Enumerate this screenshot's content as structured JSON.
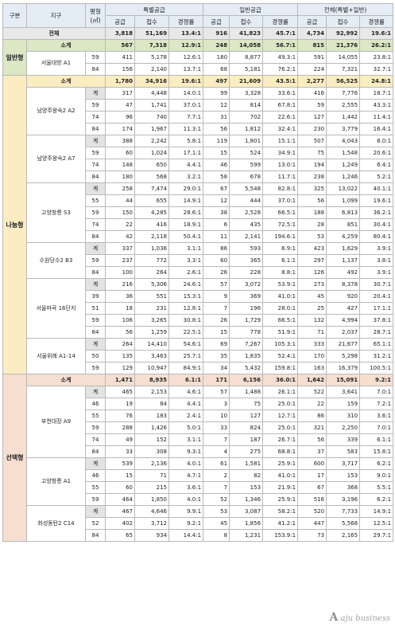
{
  "headers": {
    "gubun": "구분",
    "jigu": "지구",
    "pyeong": "평형",
    "unit": "(㎡)",
    "special": "특별공급",
    "general": "일반공급",
    "total": "전체(특별+일반)",
    "supply": "공급",
    "apply": "접수",
    "rate": "경쟁률"
  },
  "total_row": {
    "label": "전체",
    "v": [
      "3,818",
      "51,169",
      "13.4:1",
      "916",
      "41,823",
      "45.7:1",
      "4,734",
      "92,992",
      "19.6:1"
    ]
  },
  "subtotal_label": "소계",
  "sections": [
    {
      "key": "g",
      "category": "일반형",
      "subtotal": [
        "567",
        "7,318",
        "12.9:1",
        "248",
        "14,058",
        "56.7:1",
        "815",
        "21,376",
        "26.2:1"
      ],
      "districts": [
        {
          "name": "서울대방 A1",
          "rows": [
            {
              "size": "59",
              "v": [
                "411",
                "5,178",
                "12.6:1",
                "180",
                "8,877",
                "49.3:1",
                "591",
                "14,055",
                "23.8:1"
              ]
            },
            {
              "size": "84",
              "v": [
                "156",
                "2,140",
                "13.7:1",
                "68",
                "5,181",
                "76.2:1",
                "224",
                "7,321",
                "32.7:1"
              ]
            }
          ]
        }
      ]
    },
    {
      "key": "y",
      "category": "나눔형",
      "subtotal": [
        "1,780",
        "34,916",
        "19.6:1",
        "497",
        "21,609",
        "43.5:1",
        "2,277",
        "56,525",
        "24.8:1"
      ],
      "districts": [
        {
          "name": "남양주왕숙2 A2",
          "rows": [
            {
              "size": "계",
              "v": [
                "317",
                "4,448",
                "14.0:1",
                "99",
                "3,328",
                "33.6:1",
                "416",
                "7,776",
                "18.7:1"
              ]
            },
            {
              "size": "59",
              "v": [
                "47",
                "1,741",
                "37.0:1",
                "12",
                "814",
                "67.8:1",
                "59",
                "2,555",
                "43.3:1"
              ]
            },
            {
              "size": "74",
              "v": [
                "96",
                "740",
                "7.7:1",
                "31",
                "702",
                "22.6:1",
                "127",
                "1,442",
                "11.4:1"
              ]
            },
            {
              "size": "84",
              "v": [
                "174",
                "1,967",
                "11.3:1",
                "56",
                "1,812",
                "32.4:1",
                "230",
                "3,779",
                "16.4:1"
              ]
            }
          ]
        },
        {
          "name": "남양주왕숙2 A7",
          "rows": [
            {
              "size": "계",
              "v": [
                "388",
                "2,242",
                "5.8:1",
                "119",
                "1,801",
                "15.1:1",
                "507",
                "4,043",
                "8.0:1"
              ]
            },
            {
              "size": "59",
              "v": [
                "60",
                "1,024",
                "17.1:1",
                "15",
                "524",
                "34.9:1",
                "75",
                "1,548",
                "20.6:1"
              ]
            },
            {
              "size": "74",
              "v": [
                "148",
                "650",
                "4.4:1",
                "46",
                "599",
                "13.0:1",
                "194",
                "1,249",
                "6.4:1"
              ]
            },
            {
              "size": "84",
              "v": [
                "180",
                "568",
                "3.2:1",
                "58",
                "678",
                "11.7:1",
                "238",
                "1,246",
                "5.2:1"
              ]
            }
          ]
        },
        {
          "name": "고양창릉 S3",
          "rows": [
            {
              "size": "계",
              "v": [
                "258",
                "7,474",
                "29.0:1",
                "67",
                "5,548",
                "82.8:1",
                "325",
                "13,022",
                "40.1:1"
              ]
            },
            {
              "size": "55",
              "v": [
                "44",
                "655",
                "14.9:1",
                "12",
                "444",
                "37.0:1",
                "56",
                "1,099",
                "19.6:1"
              ]
            },
            {
              "size": "59",
              "v": [
                "150",
                "4,285",
                "28.6:1",
                "38",
                "2,528",
                "66.5:1",
                "188",
                "6,813",
                "36.2:1"
              ]
            },
            {
              "size": "74",
              "v": [
                "22",
                "416",
                "18.9:1",
                "6",
                "435",
                "72.5:1",
                "28",
                "851",
                "30.4:1"
              ]
            },
            {
              "size": "84",
              "v": [
                "42",
                "2,118",
                "50.4:1",
                "11",
                "2,141",
                "194.6:1",
                "53",
                "4,259",
                "80.4:1"
              ]
            }
          ]
        },
        {
          "name": "수원당수2 B3",
          "rows": [
            {
              "size": "계",
              "v": [
                "337",
                "1,036",
                "3.1:1",
                "86",
                "593",
                "6.9:1",
                "423",
                "1,629",
                "3.9:1"
              ]
            },
            {
              "size": "59",
              "v": [
                "237",
                "772",
                "3.3:1",
                "60",
                "365",
                "6.1:1",
                "297",
                "1,137",
                "3.8:1"
              ]
            },
            {
              "size": "84",
              "v": [
                "100",
                "264",
                "2.6:1",
                "26",
                "228",
                "8.8:1",
                "126",
                "492",
                "3.9:1"
              ]
            }
          ]
        },
        {
          "name": "서울마곡 16단지",
          "rows": [
            {
              "size": "계",
              "v": [
                "216",
                "5,306",
                "24.6:1",
                "57",
                "3,072",
                "53.9:1",
                "273",
                "8,378",
                "30.7:1"
              ]
            },
            {
              "size": "39",
              "v": [
                "36",
                "551",
                "15.3:1",
                "9",
                "369",
                "41.0:1",
                "45",
                "920",
                "20.4:1"
              ]
            },
            {
              "size": "51",
              "v": [
                "18",
                "231",
                "12.8:1",
                "7",
                "196",
                "28.0:1",
                "25",
                "427",
                "17.1:1"
              ]
            },
            {
              "size": "59",
              "v": [
                "106",
                "3,265",
                "30.8:1",
                "26",
                "1,729",
                "66.5:1",
                "132",
                "4,994",
                "37.8:1"
              ]
            },
            {
              "size": "84",
              "v": [
                "56",
                "1,259",
                "22.5:1",
                "15",
                "778",
                "51.9:1",
                "71",
                "2,037",
                "28.7:1"
              ]
            }
          ]
        },
        {
          "name": "서울위례 A1-14",
          "rows": [
            {
              "size": "계",
              "v": [
                "264",
                "14,410",
                "54.6:1",
                "69",
                "7,267",
                "105.3:1",
                "333",
                "21,677",
                "65.1:1"
              ]
            },
            {
              "size": "50",
              "v": [
                "135",
                "3,463",
                "25.7:1",
                "35",
                "1,835",
                "52.4:1",
                "170",
                "5,298",
                "31.2:1"
              ]
            },
            {
              "size": "59",
              "v": [
                "129",
                "10,947",
                "84.9:1",
                "34",
                "5,432",
                "159.8:1",
                "163",
                "16,379",
                "100.5:1"
              ]
            }
          ]
        }
      ]
    },
    {
      "key": "p",
      "category": "선택형",
      "subtotal": [
        "1,471",
        "8,935",
        "6.1:1",
        "171",
        "6,156",
        "36.0:1",
        "1,642",
        "15,091",
        "9.2:1"
      ],
      "districts": [
        {
          "name": "부천대장 A9",
          "rows": [
            {
              "size": "계",
              "v": [
                "465",
                "2,153",
                "4.6:1",
                "57",
                "1,488",
                "26.1:1",
                "522",
                "3,641",
                "7.0:1"
              ]
            },
            {
              "size": "46",
              "v": [
                "19",
                "84",
                "4.4:1",
                "3",
                "75",
                "25.0:1",
                "22",
                "159",
                "7.2:1"
              ]
            },
            {
              "size": "55",
              "v": [
                "76",
                "183",
                "2.4:1",
                "10",
                "127",
                "12.7:1",
                "86",
                "310",
                "3.6:1"
              ]
            },
            {
              "size": "59",
              "v": [
                "288",
                "1,426",
                "5.0:1",
                "33",
                "824",
                "25.0:1",
                "321",
                "2,250",
                "7.0:1"
              ]
            },
            {
              "size": "74",
              "v": [
                "49",
                "152",
                "3.1:1",
                "7",
                "187",
                "26.7:1",
                "56",
                "339",
                "6.1:1"
              ]
            },
            {
              "size": "84",
              "v": [
                "33",
                "308",
                "9.3:1",
                "4",
                "275",
                "68.8:1",
                "37",
                "583",
                "15.8:1"
              ]
            }
          ]
        },
        {
          "name": "고양창릉 A1",
          "rows": [
            {
              "size": "계",
              "v": [
                "539",
                "2,136",
                "4.0:1",
                "61",
                "1,581",
                "25.9:1",
                "600",
                "3,717",
                "6.2:1"
              ]
            },
            {
              "size": "46",
              "v": [
                "15",
                "71",
                "4.7:1",
                "2",
                "82",
                "41.0:1",
                "17",
                "153",
                "9.0:1"
              ]
            },
            {
              "size": "55",
              "v": [
                "60",
                "215",
                "3.6:1",
                "7",
                "153",
                "21.9:1",
                "67",
                "368",
                "5.5:1"
              ]
            },
            {
              "size": "59",
              "v": [
                "464",
                "1,850",
                "4.0:1",
                "52",
                "1,346",
                "25.9:1",
                "516",
                "3,196",
                "6.2:1"
              ]
            }
          ]
        },
        {
          "name": "화성동탄2 C14",
          "rows": [
            {
              "size": "계",
              "v": [
                "467",
                "4,646",
                "9.9:1",
                "53",
                "3,087",
                "58.2:1",
                "520",
                "7,733",
                "14.9:1"
              ]
            },
            {
              "size": "52",
              "v": [
                "402",
                "3,712",
                "9.2:1",
                "45",
                "1,856",
                "41.2:1",
                "447",
                "5,568",
                "12.5:1"
              ]
            },
            {
              "size": "84",
              "v": [
                "65",
                "934",
                "14.4:1",
                "8",
                "1,231",
                "153.9:1",
                "73",
                "2,165",
                "29.7:1"
              ]
            }
          ]
        }
      ]
    }
  ],
  "watermark": {
    "logo": "A",
    "text": "aju business"
  }
}
